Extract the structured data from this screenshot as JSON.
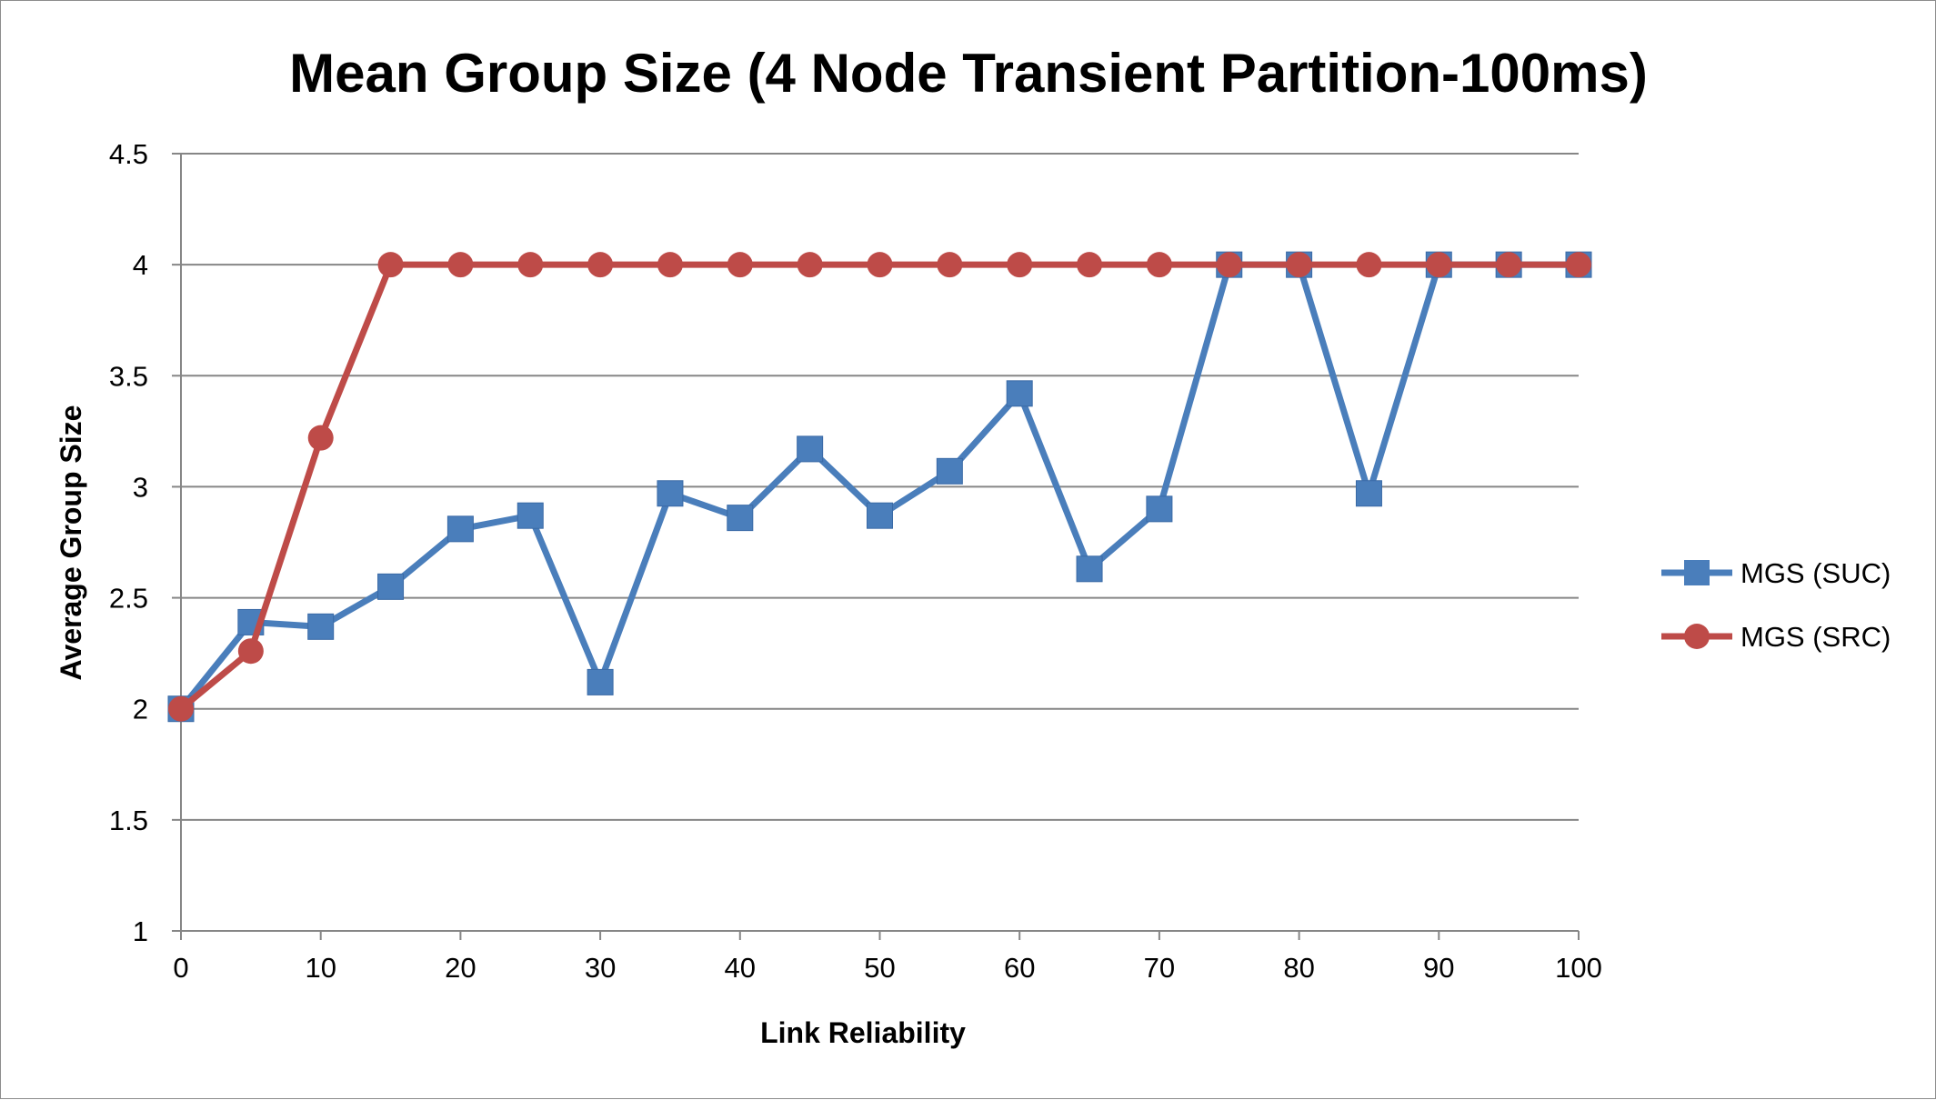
{
  "chart_data": {
    "type": "line",
    "title": "Mean Group Size (4 Node Transient Partition-100ms)",
    "xlabel": "Link Reliability",
    "ylabel": "Average Group Size",
    "x": [
      0,
      5,
      10,
      15,
      20,
      25,
      30,
      35,
      40,
      45,
      50,
      55,
      60,
      65,
      70,
      75,
      80,
      85,
      90,
      95,
      100
    ],
    "xlim": [
      0,
      100
    ],
    "ylim": [
      1,
      4.5
    ],
    "x_ticks": [
      "0",
      "10",
      "20",
      "30",
      "40",
      "50",
      "60",
      "70",
      "80",
      "90",
      "100"
    ],
    "y_ticks": [
      "1",
      "1.5",
      "2",
      "2.5",
      "3",
      "3.5",
      "4",
      "4.5"
    ],
    "grid": "horizontal",
    "legend_position": "right",
    "series": [
      {
        "name": "MGS (SUC)",
        "color": "#4a7ebb",
        "marker": "square",
        "values": [
          2.0,
          2.39,
          2.37,
          2.55,
          2.81,
          2.87,
          2.12,
          2.97,
          2.86,
          3.17,
          2.87,
          3.07,
          3.42,
          2.63,
          2.9,
          4.0,
          4.0,
          2.97,
          4.0,
          4.0,
          4.0
        ]
      },
      {
        "name": "MGS (SRC)",
        "color": "#be4b48",
        "marker": "circle",
        "values": [
          2.0,
          2.26,
          3.22,
          4.0,
          4.0,
          4.0,
          4.0,
          4.0,
          4.0,
          4.0,
          4.0,
          4.0,
          4.0,
          4.0,
          4.0,
          4.0,
          4.0,
          4.0,
          4.0,
          4.0,
          4.0
        ]
      }
    ]
  }
}
